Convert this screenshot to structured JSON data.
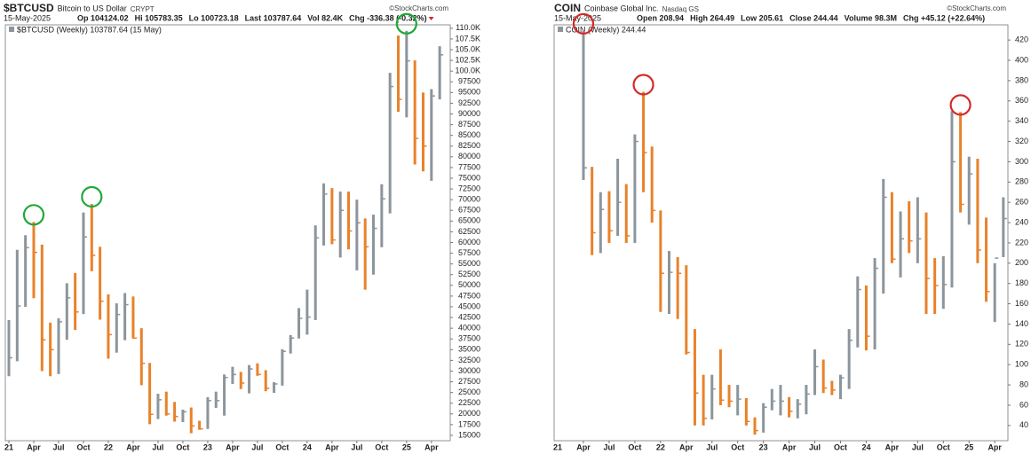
{
  "chart_data": [
    {
      "type": "hlc",
      "symbol": "$BTCUSD",
      "name": "Bitcoin to US Dollar",
      "exchange": "CRYPT",
      "date": "15-May-2025",
      "stats": [
        "Op 104124.02",
        "Hi 105783.35",
        "Lo 100723.18",
        "Last 103787.64",
        "Vol 82.4K",
        "Chg -336.38 (-0.32%)"
      ],
      "legend": "$BTCUSD (Weekly) 103787.64 (15 May)",
      "watermark": "©StockCharts.com",
      "up_color": "#8c959c",
      "down_color": "#e8822a",
      "annotation_color": "#1fa83a",
      "x": [
        "2021-01",
        "2021-02",
        "2021-03",
        "2021-04",
        "2021-05",
        "2021-06",
        "2021-07",
        "2021-08",
        "2021-09",
        "2021-10",
        "2021-11",
        "2021-12",
        "2022-01",
        "2022-02",
        "2022-03",
        "2022-04",
        "2022-05",
        "2022-06",
        "2022-07",
        "2022-08",
        "2022-09",
        "2022-10",
        "2022-11",
        "2022-12",
        "2023-01",
        "2023-02",
        "2023-03",
        "2023-04",
        "2023-05",
        "2023-06",
        "2023-07",
        "2023-08",
        "2023-09",
        "2023-10",
        "2023-11",
        "2023-12",
        "2024-01",
        "2024-02",
        "2024-03",
        "2024-04",
        "2024-05",
        "2024-06",
        "2024-07",
        "2024-08",
        "2024-09",
        "2024-10",
        "2024-11",
        "2024-12",
        "2025-01",
        "2025-02",
        "2025-03",
        "2025-04",
        "2025-05"
      ],
      "high": [
        41900,
        58300,
        61700,
        64800,
        59500,
        41300,
        42300,
        50500,
        52900,
        67000,
        69000,
        59000,
        47900,
        45800,
        48200,
        47400,
        40000,
        31900,
        24700,
        25200,
        22800,
        21000,
        21500,
        18400,
        23900,
        25200,
        29200,
        31000,
        29800,
        31400,
        31800,
        30200,
        27400,
        35100,
        38400,
        44700,
        49000,
        64000,
        73800,
        72700,
        71900,
        71900,
        70000,
        65600,
        66500,
        73600,
        99600,
        108300,
        109400,
        102500,
        95000,
        95800,
        105800
      ],
      "low": [
        28800,
        32300,
        45000,
        47000,
        30000,
        28800,
        29300,
        37300,
        39600,
        43300,
        53300,
        42000,
        32900,
        34300,
        37200,
        37600,
        26700,
        17600,
        18800,
        19600,
        18200,
        18100,
        15500,
        16300,
        16500,
        21400,
        19600,
        27000,
        25800,
        24800,
        28900,
        25300,
        24900,
        26600,
        34100,
        37600,
        38500,
        41900,
        59300,
        59600,
        56500,
        58400,
        53500,
        49000,
        52500,
        58900,
        66800,
        90500,
        89200,
        78200,
        76600,
        74400,
        93400
      ],
      "close": [
        33100,
        45200,
        58800,
        57700,
        37300,
        35000,
        41500,
        47100,
        43800,
        61300,
        57000,
        46300,
        38500,
        43200,
        45500,
        37700,
        31800,
        19900,
        23300,
        20000,
        19400,
        20500,
        17200,
        16500,
        23100,
        23100,
        28500,
        29200,
        27200,
        30500,
        29200,
        26000,
        27000,
        34600,
        37700,
        42300,
        42600,
        61100,
        71300,
        60600,
        67500,
        62700,
        64600,
        59000,
        63300,
        70200,
        96400,
        93400,
        102400,
        84300,
        82500,
        94200,
        103800
      ],
      "annotations": [
        {
          "x": "2021-04",
          "y": 64800
        },
        {
          "x": "2021-11",
          "y": 69000
        },
        {
          "x": "2025-01",
          "y": 109400
        }
      ],
      "xticks": [
        {
          "value": "2021-01",
          "label": "21"
        },
        {
          "value": "2021-04",
          "label": "Apr"
        },
        {
          "value": "2021-07",
          "label": "Jul"
        },
        {
          "value": "2021-10",
          "label": "Oct"
        },
        {
          "value": "2022-01",
          "label": "22"
        },
        {
          "value": "2022-04",
          "label": "Apr"
        },
        {
          "value": "2022-07",
          "label": "Jul"
        },
        {
          "value": "2022-10",
          "label": "Oct"
        },
        {
          "value": "2023-01",
          "label": "23"
        },
        {
          "value": "2023-04",
          "label": "Apr"
        },
        {
          "value": "2023-07",
          "label": "Jul"
        },
        {
          "value": "2023-10",
          "label": "Oct"
        },
        {
          "value": "2024-01",
          "label": "24"
        },
        {
          "value": "2024-04",
          "label": "Apr"
        },
        {
          "value": "2024-07",
          "label": "Jul"
        },
        {
          "value": "2024-10",
          "label": "Oct"
        },
        {
          "value": "2025-01",
          "label": "25"
        },
        {
          "value": "2025-04",
          "label": "Apr"
        }
      ],
      "ylim": [
        13750,
        110800
      ],
      "yticks": [
        15000,
        17500,
        20000,
        22500,
        25000,
        27500,
        30000,
        32500,
        35000,
        37500,
        40000,
        42500,
        45000,
        47500,
        50000,
        52500,
        55000,
        57500,
        60000,
        62500,
        65000,
        67500,
        70000,
        72500,
        75000,
        77500,
        80000,
        82500,
        85000,
        87500,
        90000,
        92500,
        95000,
        97500,
        {
          "value": 100000,
          "label": "100.0K"
        },
        {
          "value": 102500,
          "label": "102.5K"
        },
        {
          "value": 105000,
          "label": "105.0K"
        },
        {
          "value": 107500,
          "label": "107.5K"
        },
        {
          "value": 110000,
          "label": "110.0K"
        }
      ]
    },
    {
      "type": "hlc",
      "symbol": "COIN",
      "name": "Coinbase Global Inc.",
      "exchange": "Nasdaq GS",
      "date": "15-May-2025",
      "stats": [
        "Open 208.94",
        "High 264.49",
        "Low 205.61",
        "Close 244.44",
        "Volume 98.3M",
        "Chg +45.12 (+22.64%)"
      ],
      "legend": "COIN (Weekly) 244.44",
      "watermark": "©StockCharts.com",
      "up_color": "#8c959c",
      "down_color": "#e8822a",
      "annotation_color": "#d42a2a",
      "x": [
        "2021-04",
        "2021-05",
        "2021-06",
        "2021-07",
        "2021-08",
        "2021-09",
        "2021-10",
        "2021-11",
        "2021-12",
        "2022-01",
        "2022-02",
        "2022-03",
        "2022-04",
        "2022-05",
        "2022-06",
        "2022-07",
        "2022-08",
        "2022-09",
        "2022-10",
        "2022-11",
        "2022-12",
        "2023-01",
        "2023-02",
        "2023-03",
        "2023-04",
        "2023-05",
        "2023-06",
        "2023-07",
        "2023-08",
        "2023-09",
        "2023-10",
        "2023-11",
        "2023-12",
        "2024-01",
        "2024-02",
        "2024-03",
        "2024-04",
        "2024-05",
        "2024-06",
        "2024-07",
        "2024-08",
        "2024-09",
        "2024-10",
        "2024-11",
        "2024-12",
        "2025-01",
        "2025-02",
        "2025-03",
        "2025-04",
        "2025-05"
      ],
      "high": [
        429,
        295,
        270,
        271,
        303,
        278,
        327,
        369,
        315,
        252,
        212,
        206,
        198,
        135,
        90,
        90,
        115,
        80,
        80,
        67,
        48,
        62,
        76,
        80,
        68,
        66,
        80,
        115,
        105,
        84,
        90,
        135,
        187,
        178,
        205,
        283,
        270,
        251,
        261,
        265,
        250,
        205,
        207,
        350,
        349,
        305,
        303,
        245,
        200,
        265
      ],
      "low": [
        282,
        208,
        210,
        220,
        227,
        220,
        220,
        270,
        240,
        152,
        150,
        145,
        110,
        40,
        40,
        46,
        60,
        58,
        50,
        40,
        31,
        33,
        55,
        50,
        48,
        47,
        51,
        70,
        72,
        70,
        66,
        76,
        117,
        114,
        115,
        170,
        200,
        186,
        210,
        200,
        150,
        150,
        155,
        176,
        250,
        238,
        200,
        162,
        142,
        206
      ],
      "close": [
        294,
        230,
        253,
        232,
        260,
        227,
        320,
        309,
        252,
        190,
        191,
        190,
        112,
        72,
        47,
        76,
        65,
        64,
        66,
        44,
        35,
        58,
        64,
        64,
        54,
        61,
        71,
        98,
        77,
        75,
        87,
        124,
        174,
        128,
        195,
        265,
        204,
        224,
        222,
        224,
        185,
        178,
        179,
        300,
        258,
        288,
        213,
        172,
        205,
        244
      ],
      "annotations": [
        {
          "x": "2021-04",
          "y": 429
        },
        {
          "x": "2021-11",
          "y": 369
        },
        {
          "x": "2024-12",
          "y": 349
        }
      ],
      "xticks": [
        {
          "value": "2021-04",
          "label": "Apr"
        },
        {
          "value": "2021-07",
          "label": "Jul"
        },
        {
          "value": "2021-10",
          "label": "Oct"
        },
        {
          "value": "2022-01",
          "label": "22"
        },
        {
          "value": "2022-04",
          "label": "Apr"
        },
        {
          "value": "2022-07",
          "label": "Jul"
        },
        {
          "value": "2022-10",
          "label": "Oct"
        },
        {
          "value": "2023-01",
          "label": "23"
        },
        {
          "value": "2023-04",
          "label": "Apr"
        },
        {
          "value": "2023-07",
          "label": "Jul"
        },
        {
          "value": "2023-10",
          "label": "Oct"
        },
        {
          "value": "2024-01",
          "label": "24"
        },
        {
          "value": "2024-04",
          "label": "Apr"
        },
        {
          "value": "2024-07",
          "label": "Jul"
        },
        {
          "value": "2024-10",
          "label": "Oct"
        },
        {
          "value": "2025-01",
          "label": "25"
        },
        {
          "value": "2025-04",
          "label": "Apr"
        }
      ],
      "year_label": "21",
      "ylim": [
        25,
        435
      ],
      "yticks": [
        40,
        60,
        80,
        100,
        120,
        140,
        160,
        180,
        200,
        220,
        240,
        260,
        280,
        300,
        320,
        340,
        360,
        380,
        400,
        420
      ]
    }
  ]
}
